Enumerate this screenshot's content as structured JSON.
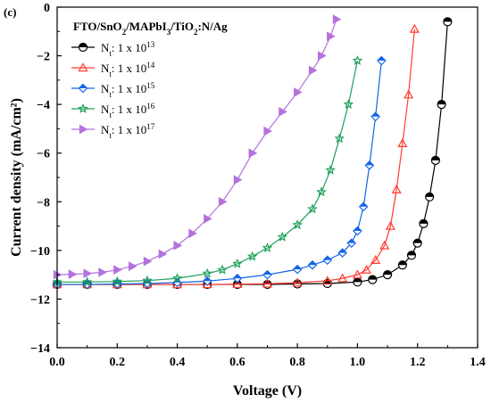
{
  "chart_data": {
    "type": "line",
    "panel_label": "(c)",
    "title": "FTO/SnO2/MAPbI3/TiO2:N/Ag",
    "title_parts": [
      {
        "t": "FTO/SnO",
        "sub": false
      },
      {
        "t": "2",
        "sub": true
      },
      {
        "t": "/MAPbI",
        "sub": false
      },
      {
        "t": "3",
        "sub": true
      },
      {
        "t": "/TiO",
        "sub": false
      },
      {
        "t": "2",
        "sub": true
      },
      {
        "t": ":N/Ag",
        "sub": false
      }
    ],
    "xlabel": "Voltage (V)",
    "ylabel": "Current density (mA/cm²)",
    "xlim": [
      0.0,
      1.4
    ],
    "ylim": [
      -14,
      0
    ],
    "xticks": [
      0.0,
      0.2,
      0.4,
      0.6,
      0.8,
      1.0,
      1.2,
      1.4
    ],
    "xtick_labels": [
      "0.0",
      "0.2",
      "0.4",
      "0.6",
      "0.8",
      "1.0",
      "1.2",
      "1.4"
    ],
    "yticks": [
      0,
      -2,
      -4,
      -6,
      -8,
      -10,
      -12,
      -14
    ],
    "ytick_labels": [
      "0",
      "−2",
      "−4",
      "−6",
      "−8",
      "−10",
      "−12",
      "−14"
    ],
    "grid": false,
    "legend_position": "top-left",
    "series": [
      {
        "name": "Nt: 1 x 10^13",
        "label_main": "N",
        "label_sub": "t",
        "label_rest": ": 1 x 10",
        "label_sup": "13",
        "color": "#000000",
        "marker": "circle",
        "x": [
          0.0,
          0.1,
          0.2,
          0.3,
          0.4,
          0.5,
          0.6,
          0.7,
          0.8,
          0.9,
          1.0,
          1.05,
          1.1,
          1.15,
          1.18,
          1.2,
          1.22,
          1.24,
          1.26,
          1.28,
          1.3
        ],
        "y": [
          -11.4,
          -11.4,
          -11.4,
          -11.4,
          -11.4,
          -11.4,
          -11.4,
          -11.4,
          -11.38,
          -11.36,
          -11.3,
          -11.2,
          -11.0,
          -10.6,
          -10.2,
          -9.7,
          -8.9,
          -7.8,
          -6.3,
          -4.0,
          -0.6
        ]
      },
      {
        "name": "Nt: 1 x 10^14",
        "label_main": "N",
        "label_sub": "t",
        "label_rest": ": 1 x 10",
        "label_sup": "14",
        "color": "#ff3b30",
        "marker": "triangle-up",
        "x": [
          0.0,
          0.1,
          0.2,
          0.3,
          0.4,
          0.5,
          0.6,
          0.7,
          0.8,
          0.9,
          0.95,
          1.0,
          1.03,
          1.06,
          1.09,
          1.11,
          1.13,
          1.15,
          1.17,
          1.19
        ],
        "y": [
          -11.4,
          -11.4,
          -11.4,
          -11.4,
          -11.4,
          -11.4,
          -11.39,
          -11.37,
          -11.33,
          -11.25,
          -11.15,
          -11.0,
          -10.8,
          -10.4,
          -9.8,
          -9.0,
          -7.5,
          -5.6,
          -3.6,
          -0.9
        ]
      },
      {
        "name": "Nt: 1 x 10^15",
        "label_main": "N",
        "label_sub": "t",
        "label_rest": ": 1 x 10",
        "label_sup": "15",
        "color": "#1565e8",
        "marker": "diamond",
        "x": [
          0.0,
          0.1,
          0.2,
          0.3,
          0.4,
          0.5,
          0.6,
          0.7,
          0.8,
          0.85,
          0.9,
          0.95,
          0.98,
          1.0,
          1.02,
          1.04,
          1.06,
          1.08
        ],
        "y": [
          -11.4,
          -11.4,
          -11.38,
          -11.36,
          -11.32,
          -11.26,
          -11.15,
          -11.0,
          -10.78,
          -10.6,
          -10.4,
          -10.1,
          -9.7,
          -9.2,
          -8.2,
          -6.5,
          -4.5,
          -2.2
        ]
      },
      {
        "name": "Nt: 1 x 10^16",
        "label_main": "N",
        "label_sub": "t",
        "label_rest": ": 1 x 10",
        "label_sup": "16",
        "color": "#1ea05a",
        "marker": "star",
        "x": [
          0.0,
          0.1,
          0.2,
          0.3,
          0.4,
          0.5,
          0.55,
          0.6,
          0.65,
          0.7,
          0.75,
          0.8,
          0.85,
          0.88,
          0.91,
          0.94,
          0.97,
          1.0
        ],
        "y": [
          -11.3,
          -11.3,
          -11.28,
          -11.24,
          -11.15,
          -10.95,
          -10.8,
          -10.55,
          -10.25,
          -9.9,
          -9.45,
          -8.95,
          -8.3,
          -7.6,
          -6.7,
          -5.4,
          -4.0,
          -2.2
        ]
      },
      {
        "name": "Nt: 1 x 10^17",
        "label_main": "N",
        "label_sub": "t",
        "label_rest": ": 1 x 10",
        "label_sup": "17",
        "color": "#b472dc",
        "marker": "triangle-right",
        "x": [
          0.0,
          0.05,
          0.1,
          0.15,
          0.2,
          0.25,
          0.3,
          0.35,
          0.4,
          0.45,
          0.5,
          0.55,
          0.6,
          0.65,
          0.7,
          0.75,
          0.8,
          0.85,
          0.88,
          0.91,
          0.93
        ],
        "y": [
          -11.0,
          -10.98,
          -10.95,
          -10.9,
          -10.8,
          -10.65,
          -10.45,
          -10.15,
          -9.8,
          -9.3,
          -8.7,
          -8.0,
          -7.1,
          -6.0,
          -5.1,
          -4.3,
          -3.5,
          -2.6,
          -2.0,
          -1.2,
          -0.5
        ]
      }
    ]
  }
}
